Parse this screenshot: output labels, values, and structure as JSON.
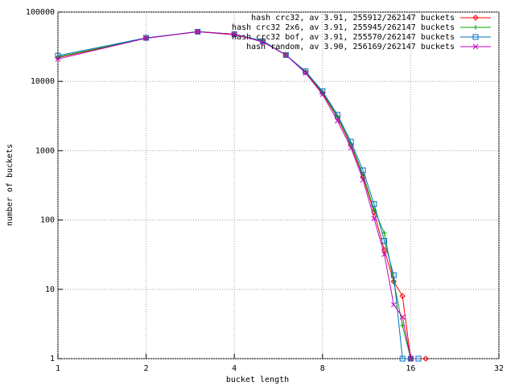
{
  "chart_data": {
    "type": "line",
    "xlabel": "bucket length",
    "ylabel": "number of buckets",
    "xscale": "log",
    "yscale": "log",
    "grid": true,
    "legend": "top-right",
    "xlim": [
      1,
      32
    ],
    "xticks": [
      1,
      2,
      4,
      8,
      16,
      32
    ],
    "ylim": [
      1,
      100000
    ],
    "yticks": [
      1,
      10,
      100,
      1000,
      10000,
      100000
    ],
    "series": [
      {
        "name": "hash crc32, av 3.91, 255912/262147 buckets",
        "color": "#ff0000",
        "marker": "diamond",
        "x": [
          1,
          2,
          3,
          4,
          5,
          6,
          7,
          8,
          9,
          10,
          11,
          12,
          13,
          14,
          15,
          16,
          18
        ],
        "values": [
          22000,
          42000,
          52000,
          47000,
          38000,
          24000,
          13500,
          6800,
          3000,
          1200,
          420,
          130,
          37,
          13,
          8,
          1,
          1
        ]
      },
      {
        "name": "hash crc32 2x6, av 3.91, 255945/262147 buckets",
        "color": "#00a000",
        "marker": "plus",
        "x": [
          1,
          2,
          3,
          4,
          5,
          6,
          7,
          8,
          9,
          10,
          11,
          12,
          13,
          14,
          15,
          16
        ],
        "values": [
          22500,
          42000,
          52500,
          48000,
          38500,
          24000,
          13800,
          7000,
          3100,
          1250,
          450,
          140,
          65,
          13,
          3,
          1
        ]
      },
      {
        "name": "hash crc32 bof, av 3.91, 255570/262147 buckets",
        "color": "#0070c0",
        "marker": "square",
        "x": [
          1,
          2,
          3,
          4,
          5,
          6,
          7,
          8,
          9,
          10,
          11,
          12,
          13,
          14,
          15,
          16,
          17
        ],
        "values": [
          23500,
          42500,
          52000,
          48000,
          38000,
          24000,
          14000,
          7200,
          3300,
          1350,
          520,
          170,
          50,
          16,
          1,
          1,
          1
        ]
      },
      {
        "name": "hash random, av 3.90, 256169/262147 buckets",
        "color": "#c000c0",
        "marker": "cross",
        "x": [
          1,
          2,
          3,
          4,
          5,
          6,
          7,
          8,
          9,
          10,
          11,
          12,
          13,
          14,
          15,
          16
        ],
        "values": [
          21000,
          42000,
          52000,
          48000,
          37000,
          24000,
          13200,
          6500,
          2700,
          1100,
          380,
          105,
          32,
          6,
          4,
          1
        ]
      }
    ]
  }
}
